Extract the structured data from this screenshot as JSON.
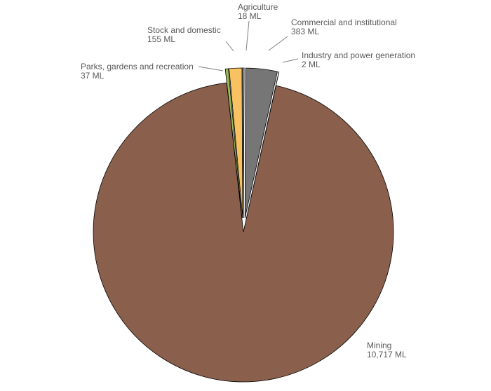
{
  "chart_data": {
    "type": "pie",
    "title": "",
    "unit": "ML",
    "slices": [
      {
        "name": "Agriculture",
        "value": 18,
        "value_label": "18 ML",
        "color": "#C4D79B"
      },
      {
        "name": "Commercial and institutional",
        "value": 383,
        "value_label": "383 ML",
        "color": "#767676"
      },
      {
        "name": "Industry and power generation",
        "value": 2,
        "value_label": "2 ML",
        "color": "#4F81BD"
      },
      {
        "name": "Mining",
        "value": 10717,
        "value_label": "10,717 ML",
        "color": "#8A5F4C"
      },
      {
        "name": "Parks, gardens and recreation",
        "value": 37,
        "value_label": "37 ML",
        "color": "#9BBB59"
      },
      {
        "name": "Stock and domestic",
        "value": 155,
        "value_label": "155 ML",
        "color": "#F8C161"
      }
    ],
    "exploded": true,
    "legend": "none (data labels with leader lines)"
  }
}
